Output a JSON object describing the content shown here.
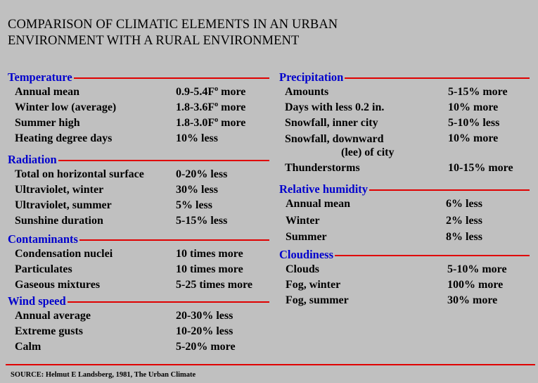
{
  "title_line1": "COMPARISON OF CLIMATIC ELEMENTS IN AN URBAN",
  "title_line2": "ENVIRONMENT WITH A RURAL ENVIRONMENT",
  "left": [
    {
      "id": "temperature",
      "title": "Temperature",
      "rows": [
        {
          "label": "Annual mean",
          "value": "0.9-5.4F",
          "deg": "o",
          "value_suffix": " more"
        },
        {
          "label": "Winter low (average)",
          "value": "1.8-3.6F",
          "deg": "o",
          "value_suffix": " more"
        },
        {
          "label": "Summer high",
          "value": "1.8-3.0F",
          "deg": "o",
          "value_suffix": " more"
        },
        {
          "label": "Heating degree days",
          "value": "10% less"
        }
      ]
    },
    {
      "id": "radiation",
      "title": "Radiation",
      "rows": [
        {
          "label": "Total on horizontal surface",
          "value": "0-20% less"
        },
        {
          "label": "Ultraviolet, winter",
          "value": "30% less"
        },
        {
          "label": "Ultraviolet, summer",
          "value": "5% less"
        },
        {
          "label": "Sunshine duration",
          "value": "5-15% less"
        }
      ]
    },
    {
      "id": "contaminants",
      "title": "Contaminants",
      "rows": [
        {
          "label": "Condensation nuclei",
          "value": "10 times more"
        },
        {
          "label": "Particulates",
          "value": "10 times more"
        },
        {
          "label": "Gaseous mixtures",
          "value": "5-25 times more"
        }
      ]
    },
    {
      "id": "wind-speed",
      "title": "Wind speed",
      "rows": [
        {
          "label": "Annual average",
          "value": "20-30% less"
        },
        {
          "label": "Extreme gusts",
          "value": "10-20% less"
        },
        {
          "label": "Calm",
          "value": "5-20% more"
        }
      ]
    }
  ],
  "right": [
    {
      "id": "precipitation",
      "title": "Precipitation",
      "rows": [
        {
          "label": "Amounts",
          "value": "5-15% more"
        },
        {
          "label": "Days with less 0.2 in.",
          "value": "10% more"
        },
        {
          "label": "Snowfall, inner city",
          "value": "5-10% less"
        },
        {
          "label": "Snowfall, downward",
          "label2": "(lee) of city",
          "value": "10% more"
        },
        {
          "label": "Thunderstorms",
          "value": "10-15% more"
        }
      ]
    },
    {
      "id": "relative-humidity",
      "title": "Relative humidity",
      "rows": [
        {
          "label": "Annual mean",
          "value": "6% less"
        },
        {
          "label": "Winter",
          "value": "2% less"
        },
        {
          "label": "Summer",
          "value": "8% less"
        }
      ]
    },
    {
      "id": "cloudiness",
      "title": "Cloudiness",
      "rows": [
        {
          "label": "Clouds",
          "value": "5-10% more"
        },
        {
          "label": "Fog, winter",
          "value": "100% more"
        },
        {
          "label": "Fog, summer",
          "value": "30% more"
        }
      ]
    }
  ],
  "source": "SOURCE: Helmut E Landsberg, 1981, The Urban Climate"
}
